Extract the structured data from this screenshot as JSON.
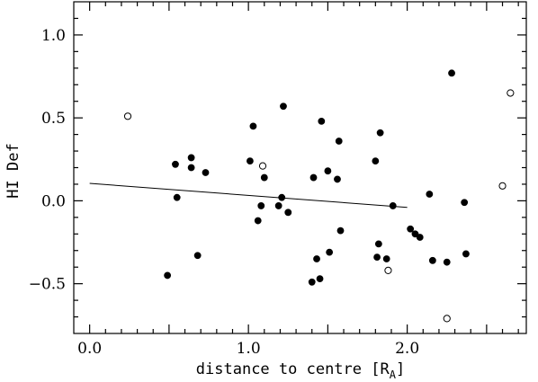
{
  "chart_data": {
    "type": "scatter",
    "xlabel": "distance to centre [R",
    "xlabel_subscript": "A",
    "xlabel_suffix": "]",
    "ylabel": "HI Def",
    "xlim": [
      -0.1,
      2.75
    ],
    "ylim": [
      -0.8,
      1.2
    ],
    "x_ticks": [
      0.0,
      1.0,
      2.0
    ],
    "x_tick_labels": [
      "0.0",
      "1.0",
      "2.0"
    ],
    "y_ticks": [
      1.0,
      0.5,
      0.0,
      -0.5
    ],
    "y_tick_labels": [
      "1.0",
      "0.5",
      "0.0",
      "−0.5"
    ],
    "grid": false,
    "series": [
      {
        "marker": "filled-circle",
        "points": [
          [
            0.49,
            -0.45
          ],
          [
            0.54,
            0.22
          ],
          [
            0.55,
            0.02
          ],
          [
            0.64,
            0.26
          ],
          [
            0.64,
            0.2
          ],
          [
            0.68,
            -0.33
          ],
          [
            0.73,
            0.17
          ],
          [
            1.01,
            0.24
          ],
          [
            1.03,
            0.45
          ],
          [
            1.06,
            -0.12
          ],
          [
            1.08,
            -0.03
          ],
          [
            1.1,
            0.14
          ],
          [
            1.19,
            -0.03
          ],
          [
            1.21,
            0.02
          ],
          [
            1.22,
            0.57
          ],
          [
            1.25,
            -0.07
          ],
          [
            1.4,
            -0.49
          ],
          [
            1.41,
            0.14
          ],
          [
            1.43,
            -0.35
          ],
          [
            1.45,
            -0.47
          ],
          [
            1.46,
            0.48
          ],
          [
            1.5,
            0.18
          ],
          [
            1.51,
            -0.31
          ],
          [
            1.56,
            0.13
          ],
          [
            1.57,
            0.36
          ],
          [
            1.58,
            -0.18
          ],
          [
            1.8,
            0.24
          ],
          [
            1.81,
            -0.34
          ],
          [
            1.82,
            -0.26
          ],
          [
            1.83,
            0.41
          ],
          [
            1.87,
            -0.35
          ],
          [
            1.91,
            -0.03
          ],
          [
            2.02,
            -0.17
          ],
          [
            2.05,
            -0.2
          ],
          [
            2.08,
            -0.22
          ],
          [
            2.14,
            0.04
          ],
          [
            2.16,
            -0.36
          ],
          [
            2.25,
            -0.37
          ],
          [
            2.28,
            0.77
          ],
          [
            2.36,
            -0.01
          ],
          [
            2.37,
            -0.32
          ]
        ]
      },
      {
        "marker": "open-circle",
        "points": [
          [
            0.24,
            0.51
          ],
          [
            1.09,
            0.21
          ],
          [
            1.88,
            -0.42
          ],
          [
            2.25,
            -0.71
          ],
          [
            2.6,
            0.09
          ],
          [
            2.65,
            0.65
          ]
        ]
      }
    ],
    "fit_line": {
      "x": [
        0.0,
        2.0
      ],
      "y": [
        0.105,
        -0.04
      ]
    }
  }
}
